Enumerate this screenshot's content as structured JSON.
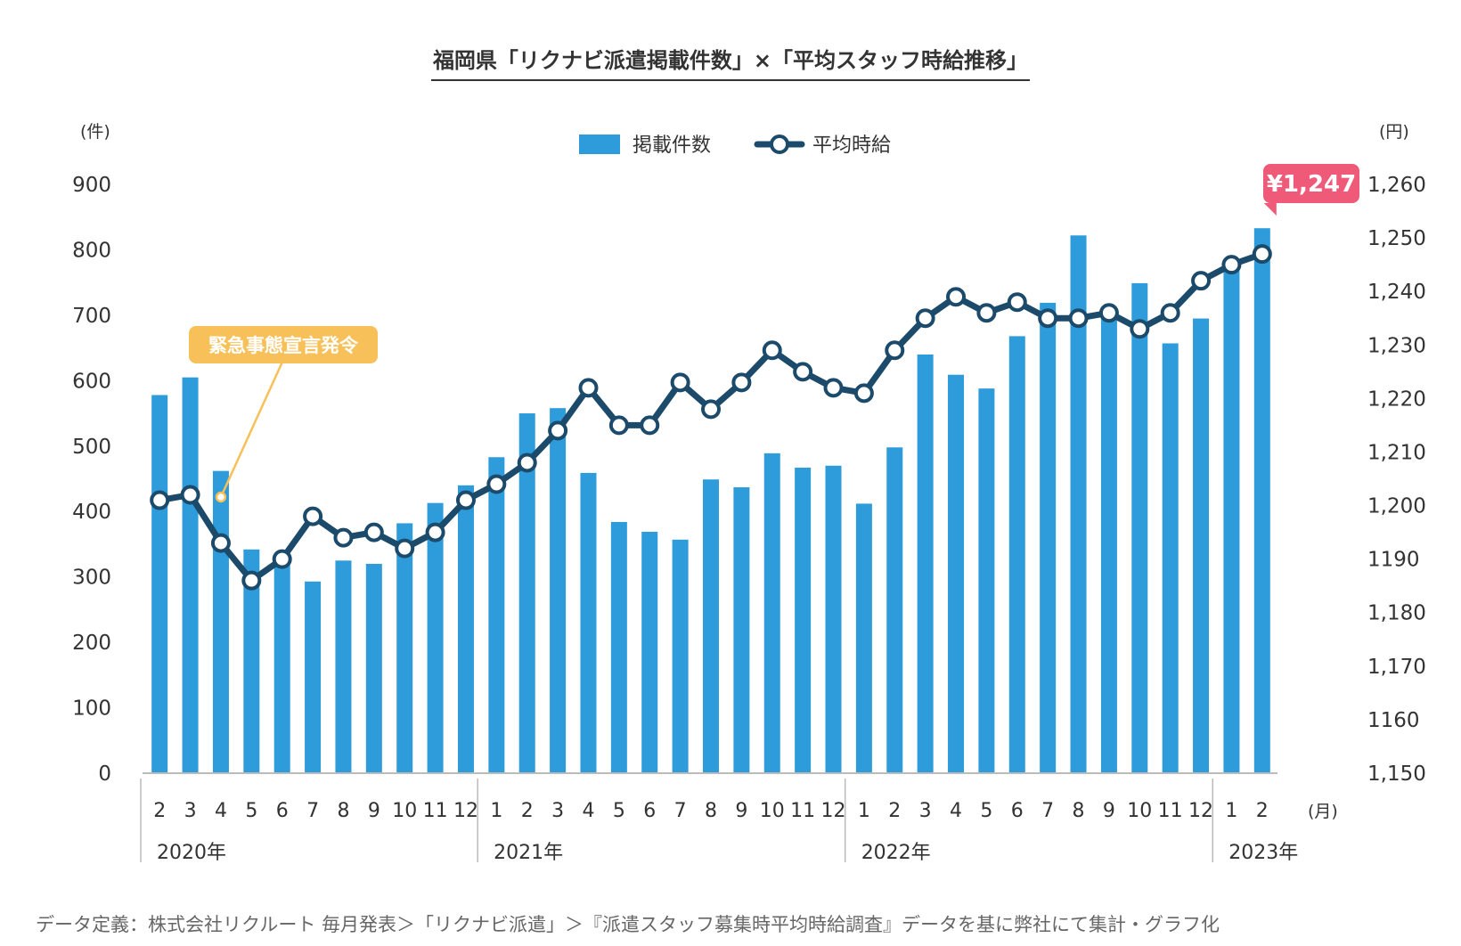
{
  "title": "福岡県「リクナビ派遣掲載件数」×「平均スタッフ時給推移」",
  "footnote": "データ定義：株式会社リクルート 毎月発表＞「リクナビ派遣」＞『派遣スタッフ募集時平均時給調査』データを基に弊社にて集計・グラフ化",
  "colors": {
    "bar": "#2e9bdb",
    "line": "#1c4a6b",
    "callout_event": "#f7c059",
    "callout_latest": "#ef5a78"
  },
  "chart_data": {
    "type": "bar+line",
    "categories": [
      "2",
      "3",
      "4",
      "5",
      "6",
      "7",
      "8",
      "9",
      "10",
      "11",
      "12",
      "1",
      "2",
      "3",
      "4",
      "5",
      "6",
      "7",
      "8",
      "9",
      "10",
      "11",
      "12",
      "1",
      "2",
      "3",
      "4",
      "5",
      "6",
      "7",
      "8",
      "9",
      "10",
      "11",
      "12",
      "1",
      "2"
    ],
    "year_groups": [
      {
        "label": "2020年",
        "start": 0,
        "end": 10
      },
      {
        "label": "2021年",
        "start": 11,
        "end": 22
      },
      {
        "label": "2022年",
        "start": 23,
        "end": 34
      },
      {
        "label": "2023年",
        "start": 35,
        "end": 36
      }
    ],
    "x_unit": "(月)",
    "series": [
      {
        "name": "掲載件数",
        "axis": "left",
        "kind": "bar",
        "values": [
          578,
          605,
          462,
          342,
          332,
          293,
          325,
          320,
          382,
          413,
          440,
          483,
          550,
          558,
          459,
          384,
          369,
          357,
          449,
          437,
          489,
          467,
          470,
          412,
          498,
          640,
          609,
          588,
          668,
          719,
          822,
          708,
          749,
          657,
          695,
          785,
          833
        ]
      },
      {
        "name": "平均時給",
        "axis": "right",
        "kind": "line",
        "values": [
          1201,
          1202,
          1193,
          1186,
          1190,
          1198,
          1194,
          1195,
          1192,
          1195,
          1201,
          1204,
          1208,
          1214,
          1222,
          1215,
          1215,
          1223,
          1218,
          1223,
          1229,
          1225,
          1222,
          1221,
          1229,
          1235,
          1239,
          1236,
          1238,
          1235,
          1235,
          1236,
          1233,
          1236,
          1242,
          1245,
          1247
        ]
      }
    ],
    "y_left": {
      "unit": "(件)",
      "ylim": [
        0,
        900
      ],
      "ticks": [
        "0",
        "100",
        "200",
        "300",
        "400",
        "500",
        "600",
        "700",
        "800",
        "900"
      ]
    },
    "y_right": {
      "unit": "(円)",
      "ylim": [
        1150,
        1260
      ],
      "ticks": [
        "1,150",
        "1160",
        "1,170",
        "1,180",
        "1190",
        "1,200",
        "1,210",
        "1,220",
        "1,230",
        "1,240",
        "1,250",
        "1,260"
      ]
    },
    "legend": {
      "placement": "top-center"
    },
    "grid": false,
    "annotations": [
      {
        "text": "緊急事態宣言発令",
        "index": 2
      },
      {
        "text": "¥1,247",
        "index": 36
      }
    ]
  }
}
